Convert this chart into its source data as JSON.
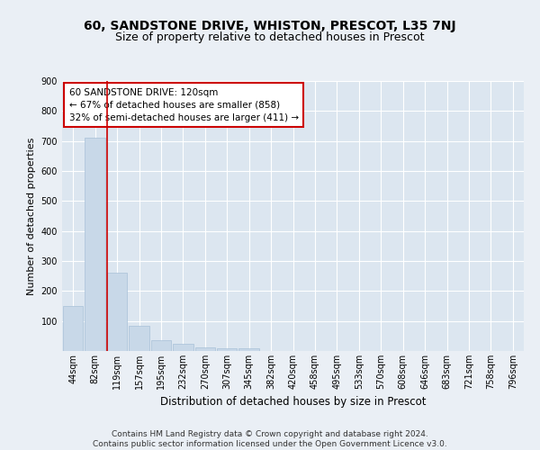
{
  "title1": "60, SANDSTONE DRIVE, WHISTON, PRESCOT, L35 7NJ",
  "title2": "Size of property relative to detached houses in Prescot",
  "xlabel": "Distribution of detached houses by size in Prescot",
  "ylabel": "Number of detached properties",
  "categories": [
    "44sqm",
    "82sqm",
    "119sqm",
    "157sqm",
    "195sqm",
    "232sqm",
    "270sqm",
    "307sqm",
    "345sqm",
    "382sqm",
    "420sqm",
    "458sqm",
    "495sqm",
    "533sqm",
    "570sqm",
    "608sqm",
    "646sqm",
    "683sqm",
    "721sqm",
    "758sqm",
    "796sqm"
  ],
  "values": [
    150,
    710,
    262,
    85,
    37,
    25,
    12,
    10,
    10,
    0,
    0,
    0,
    0,
    0,
    0,
    0,
    0,
    0,
    0,
    0,
    0
  ],
  "bar_color": "#c8d8e8",
  "bar_edge_color": "#a8c0d8",
  "highlight_index": 2,
  "highlight_line_color": "#cc0000",
  "annotation_text": "60 SANDSTONE DRIVE: 120sqm\n← 67% of detached houses are smaller (858)\n32% of semi-detached houses are larger (411) →",
  "annotation_box_color": "#ffffff",
  "annotation_box_edge_color": "#cc0000",
  "footer_text": "Contains HM Land Registry data © Crown copyright and database right 2024.\nContains public sector information licensed under the Open Government Licence v3.0.",
  "ylim": [
    0,
    900
  ],
  "yticks": [
    0,
    100,
    200,
    300,
    400,
    500,
    600,
    700,
    800,
    900
  ],
  "background_color": "#eaeff5",
  "plot_background_color": "#dce6f0",
  "grid_color": "#ffffff",
  "title1_fontsize": 10,
  "title2_fontsize": 9,
  "xlabel_fontsize": 8.5,
  "ylabel_fontsize": 8,
  "tick_fontsize": 7,
  "annotation_fontsize": 7.5,
  "footer_fontsize": 6.5
}
